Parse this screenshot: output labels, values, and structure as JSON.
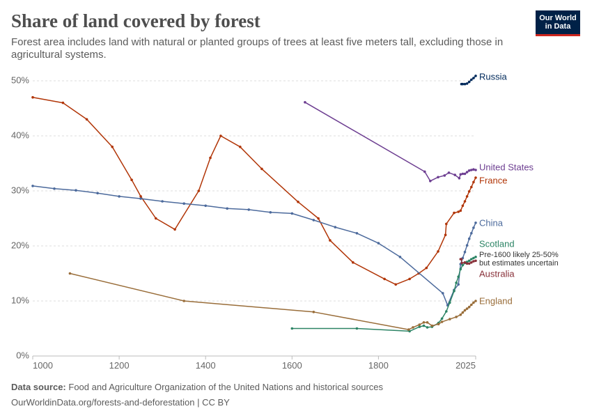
{
  "chart_data": {
    "type": "line",
    "title": "Share of land covered by forest",
    "subtitle": "Forest area includes land with natural or planted groups of trees at least five meters tall, excluding those in agricultural systems.",
    "xlim": [
      1000,
      2025
    ],
    "ylim": [
      0,
      50
    ],
    "x_ticks": [
      1000,
      1200,
      1400,
      1600,
      1800,
      2025
    ],
    "y_ticks": [
      0,
      10,
      20,
      30,
      40,
      50
    ],
    "y_tick_labels": [
      "0%",
      "10%",
      "20%",
      "30%",
      "40%",
      "50%"
    ],
    "grid": true,
    "legend": "right",
    "series": [
      {
        "name": "Russia",
        "color": "#00295b",
        "points": [
          [
            1992,
            49.4
          ],
          [
            1995,
            49.4
          ],
          [
            2000,
            49.4
          ],
          [
            2005,
            49.5
          ],
          [
            2010,
            49.8
          ],
          [
            2015,
            50.2
          ],
          [
            2020,
            50.5
          ],
          [
            2025,
            50.9
          ]
        ]
      },
      {
        "name": "United States",
        "color": "#6d3e91",
        "points": [
          [
            1630,
            46.1
          ],
          [
            1907,
            33.5
          ],
          [
            1920,
            31.8
          ],
          [
            1938,
            32.5
          ],
          [
            1953,
            32.8
          ],
          [
            1963,
            33.3
          ],
          [
            1977,
            32.9
          ],
          [
            1987,
            32.3
          ],
          [
            1990,
            33.0
          ],
          [
            1995,
            33.1
          ],
          [
            2000,
            33.1
          ],
          [
            2005,
            33.4
          ],
          [
            2010,
            33.7
          ],
          [
            2015,
            33.8
          ],
          [
            2020,
            33.9
          ],
          [
            2025,
            33.8
          ]
        ]
      },
      {
        "name": "France",
        "color": "#b13507",
        "points": [
          [
            1000,
            47
          ],
          [
            1070,
            46
          ],
          [
            1125,
            43
          ],
          [
            1184,
            38
          ],
          [
            1229,
            32
          ],
          [
            1250,
            29
          ],
          [
            1285,
            25
          ],
          [
            1329,
            23
          ],
          [
            1384,
            30
          ],
          [
            1411,
            36
          ],
          [
            1435,
            40
          ],
          [
            1480,
            38
          ],
          [
            1530,
            34
          ],
          [
            1614,
            28
          ],
          [
            1661,
            25
          ],
          [
            1688,
            21
          ],
          [
            1741,
            17
          ],
          [
            1814,
            14
          ],
          [
            1840,
            13
          ],
          [
            1872,
            14
          ],
          [
            1893,
            15
          ],
          [
            1911,
            16
          ],
          [
            1938,
            19
          ],
          [
            1955,
            22
          ],
          [
            1957,
            24
          ],
          [
            1975,
            26
          ],
          [
            1985,
            26.2
          ],
          [
            1990,
            26.4
          ],
          [
            1995,
            27.3
          ],
          [
            2000,
            28.1
          ],
          [
            2005,
            29.0
          ],
          [
            2010,
            29.9
          ],
          [
            2015,
            30.7
          ],
          [
            2020,
            31.6
          ],
          [
            2025,
            32.4
          ]
        ]
      },
      {
        "name": "China",
        "color": "#4c6a9c",
        "points": [
          [
            1000,
            30.9
          ],
          [
            1050,
            30.4
          ],
          [
            1100,
            30.1
          ],
          [
            1150,
            29.6
          ],
          [
            1200,
            29.0
          ],
          [
            1250,
            28.6
          ],
          [
            1300,
            28.1
          ],
          [
            1350,
            27.7
          ],
          [
            1400,
            27.3
          ],
          [
            1450,
            26.8
          ],
          [
            1500,
            26.6
          ],
          [
            1550,
            26.1
          ],
          [
            1600,
            25.9
          ],
          [
            1650,
            24.7
          ],
          [
            1700,
            23.4
          ],
          [
            1750,
            22.3
          ],
          [
            1800,
            20.5
          ],
          [
            1850,
            18.0
          ],
          [
            1949,
            11.4
          ],
          [
            1960,
            9.2
          ],
          [
            1975,
            12.0
          ],
          [
            1985,
            13.0
          ],
          [
            1990,
            16.7
          ],
          [
            1995,
            17.8
          ],
          [
            2000,
            18.9
          ],
          [
            2005,
            20.1
          ],
          [
            2010,
            21.3
          ],
          [
            2015,
            22.3
          ],
          [
            2020,
            23.3
          ],
          [
            2025,
            24.2
          ]
        ]
      },
      {
        "name": "Scotland",
        "color": "#2c8465",
        "annotation": [
          "Pre-1600 likely 25-50%",
          "but estimates uncertain"
        ],
        "points": [
          [
            1600,
            5
          ],
          [
            1750,
            5
          ],
          [
            1872,
            4.5
          ],
          [
            1895,
            5.3
          ],
          [
            1905,
            5.5
          ],
          [
            1913,
            5.2
          ],
          [
            1924,
            5.3
          ],
          [
            1939,
            6.0
          ],
          [
            1947,
            6.8
          ],
          [
            1957,
            8.1
          ],
          [
            1965,
            9.7
          ],
          [
            1975,
            11.8
          ],
          [
            1980,
            13.3
          ],
          [
            1985,
            14.4
          ],
          [
            1990,
            15.8
          ],
          [
            1995,
            16.5
          ],
          [
            2000,
            16.9
          ],
          [
            2005,
            17.1
          ],
          [
            2010,
            17.3
          ],
          [
            2015,
            17.6
          ],
          [
            2020,
            17.8
          ],
          [
            2025,
            18.0
          ]
        ]
      },
      {
        "name": "Australia",
        "color": "#883039",
        "points": [
          [
            1990,
            17.6
          ],
          [
            1992,
            17.6
          ],
          [
            1993,
            16.9
          ],
          [
            2000,
            17.0
          ],
          [
            2005,
            16.8
          ],
          [
            2010,
            16.8
          ],
          [
            2015,
            17.0
          ],
          [
            2020,
            17.2
          ],
          [
            2025,
            17.3
          ]
        ]
      },
      {
        "name": "England",
        "color": "#996d39",
        "points": [
          [
            1086,
            15
          ],
          [
            1350,
            10
          ],
          [
            1650,
            8
          ],
          [
            1870,
            4.8
          ],
          [
            1880,
            5.2
          ],
          [
            1895,
            5.7
          ],
          [
            1905,
            6.1
          ],
          [
            1913,
            6.1
          ],
          [
            1924,
            5.5
          ],
          [
            1939,
            5.8
          ],
          [
            1947,
            6.2
          ],
          [
            1965,
            6.7
          ],
          [
            1980,
            7.1
          ],
          [
            1990,
            7.5
          ],
          [
            1995,
            7.9
          ],
          [
            2000,
            8.3
          ],
          [
            2005,
            8.6
          ],
          [
            2010,
            8.9
          ],
          [
            2015,
            9.3
          ],
          [
            2020,
            9.7
          ],
          [
            2025,
            10.0
          ]
        ]
      }
    ]
  },
  "logo": {
    "line1": "Our World",
    "line2": "in Data",
    "bg_color": "#002147",
    "accent_color": "#ce261e"
  },
  "footer": {
    "source_label": "Data source:",
    "source_text": "Food and Agriculture Organization of the United Nations and historical sources",
    "url_text": "OurWorldinData.org/forests-and-deforestation",
    "separator": " | ",
    "license": "CC BY"
  }
}
